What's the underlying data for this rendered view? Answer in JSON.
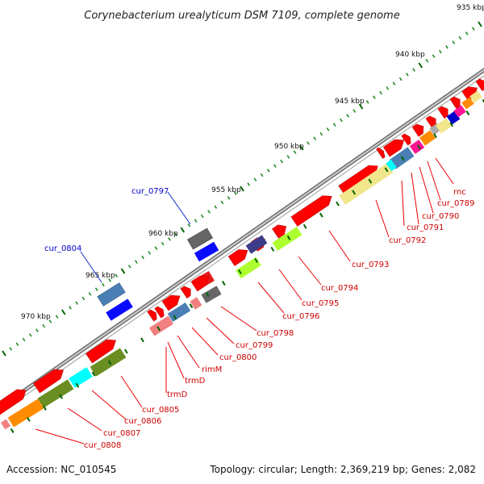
{
  "title": "Corynebacterium urealyticum DSM 7109, complete genome",
  "footer": {
    "accession": "Accession: NC_010545",
    "topology": "Topology: circular; Length: 2,369,219 bp; Genes: 2,082"
  },
  "scale_ticks": [
    "935 kbp",
    "940 kbp",
    "945 kbp",
    "950 kbp",
    "955 kbp",
    "960 kbp",
    "965 kbp",
    "970 kbp"
  ],
  "colors": {
    "cds": "#ff0000",
    "backbone": "#808080",
    "tick_major": "#006400",
    "tick_minor": "#228B22",
    "label_red": "#cc0000",
    "label_blue": "#0000cc"
  },
  "gene_labels_forward": [
    "cur_0797",
    "cur_0804"
  ],
  "gene_labels_reverse": [
    "rnc",
    "cur_0789",
    "cur_0790",
    "cur_0791",
    "cur_0792",
    "cur_0793",
    "cur_0794",
    "cur_0795",
    "cur_0796",
    "cur_0798",
    "cur_0799",
    "cur_0800",
    "rimM",
    "trmD",
    "trmD",
    "cur_0805",
    "cur_0806",
    "cur_0807",
    "cur_0808"
  ]
}
